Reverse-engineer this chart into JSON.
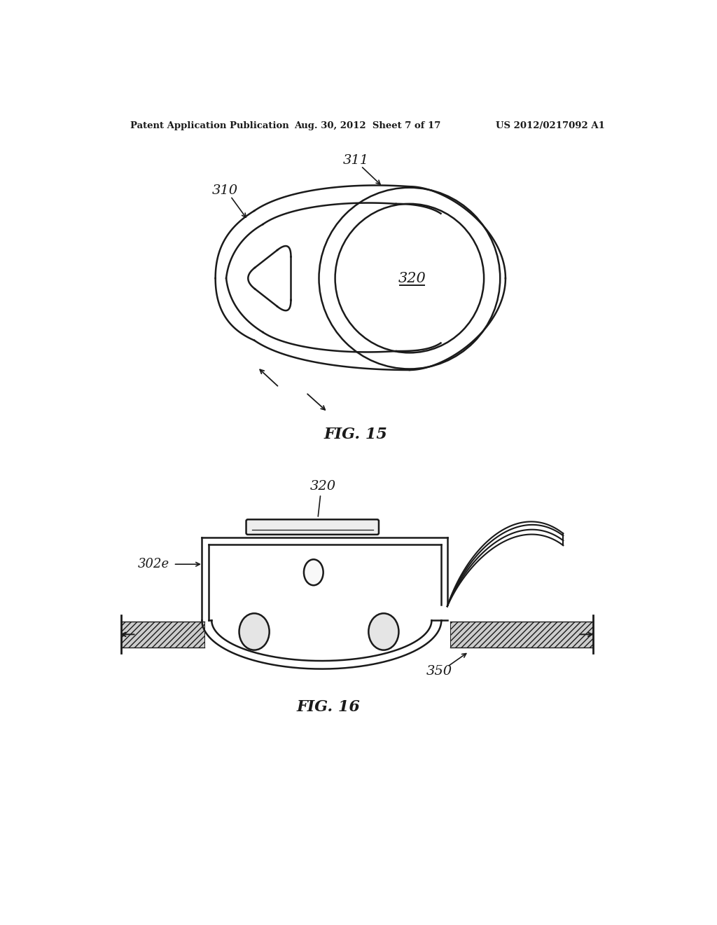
{
  "bg_color": "#ffffff",
  "line_color": "#1a1a1a",
  "header_left": "Patent Application Publication",
  "header_center": "Aug. 30, 2012  Sheet 7 of 17",
  "header_right": "US 2012/0217092 A1",
  "fig15_label": "FIG. 15",
  "fig16_label": "FIG. 16",
  "label_310": "310",
  "label_311": "311",
  "label_320_top": "320",
  "label_320_bot": "320",
  "label_302e": "302e",
  "label_350": "350"
}
